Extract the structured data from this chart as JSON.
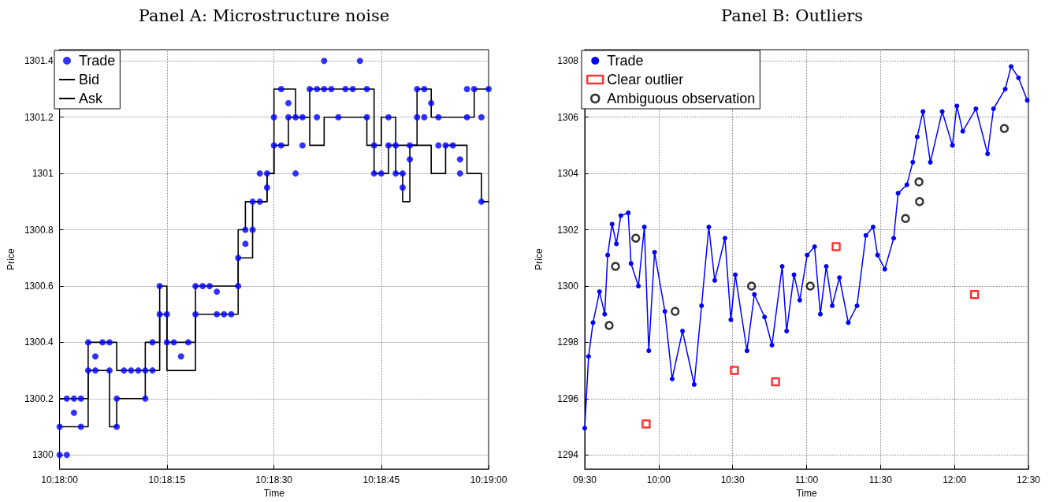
{
  "chart_data": [
    {
      "type": "scatter",
      "title": "Panel A: Microstructure noise",
      "xlabel": "Time",
      "ylabel": "Price",
      "xlim": [
        10.3,
        10.31667
      ],
      "xticks": [
        {
          "value": 10.3,
          "label": "10:18:00"
        },
        {
          "value": 10.30417,
          "label": "10:18:15"
        },
        {
          "value": 10.30833,
          "label": "10:18:30"
        },
        {
          "value": 10.3125,
          "label": "10:18:45"
        },
        {
          "value": 10.31667,
          "label": "10:19:00"
        }
      ],
      "ylim": [
        1299.95,
        1301.44
      ],
      "yticks": [
        1300,
        1300.2,
        1300.4,
        1300.6,
        1300.8,
        1301,
        1301.2,
        1301.4
      ],
      "grid": true,
      "legend": "top left",
      "series": [
        {
          "name": "Trade",
          "marker": "circle",
          "color": "#0000ff",
          "x": [
            10.3,
            10.3,
            10.30028,
            10.30028,
            10.30056,
            10.30056,
            10.30083,
            10.30083,
            10.30111,
            10.30111,
            10.30139,
            10.30139,
            10.30167,
            10.30194,
            10.30194,
            10.30222,
            10.30222,
            10.3025,
            10.30278,
            10.30306,
            10.30333,
            10.30333,
            10.30361,
            10.30361,
            10.30389,
            10.30389,
            10.30417,
            10.30417,
            10.30444,
            10.30472,
            10.305,
            10.30528,
            10.30528,
            10.30556,
            10.30583,
            10.30611,
            10.30611,
            10.30639,
            10.30667,
            10.30694,
            10.30694,
            10.30722,
            10.30722,
            10.3075,
            10.3075,
            10.30778,
            10.30778,
            10.30806,
            10.30806,
            10.30833,
            10.30833,
            10.30861,
            10.30861,
            10.30889,
            10.30889,
            10.30917,
            10.30917,
            10.30944,
            10.30944,
            10.30972,
            10.31,
            10.31,
            10.31028,
            10.31028,
            10.31056,
            10.31083,
            10.31111,
            10.31139,
            10.31167,
            10.31194,
            10.31194,
            10.31222,
            10.31222,
            10.3125,
            10.31278,
            10.31278,
            10.31306,
            10.31306,
            10.31333,
            10.31333,
            10.31361,
            10.31361,
            10.31389,
            10.31389,
            10.31417,
            10.31417,
            10.31444,
            10.31472,
            10.31472,
            10.315,
            10.31528,
            10.31556,
            10.31556,
            10.31583,
            10.31583,
            10.31611,
            10.31639,
            10.31639,
            10.31667
          ],
          "values": [
            1300.0,
            1300.1,
            1300.2,
            1300.0,
            1300.15,
            1300.2,
            1300.2,
            1300.1,
            1300.4,
            1300.3,
            1300.35,
            1300.3,
            1300.4,
            1300.4,
            1300.3,
            1300.1,
            1300.2,
            1300.3,
            1300.3,
            1300.3,
            1300.2,
            1300.3,
            1300.4,
            1300.3,
            1300.5,
            1300.6,
            1300.5,
            1300.4,
            1300.4,
            1300.35,
            1300.4,
            1300.5,
            1300.6,
            1300.6,
            1300.6,
            1300.58,
            1300.5,
            1300.5,
            1300.5,
            1300.6,
            1300.7,
            1300.8,
            1300.75,
            1300.9,
            1300.8,
            1300.9,
            1301.0,
            1300.95,
            1301.0,
            1301.2,
            1301.1,
            1301.3,
            1301.1,
            1301.25,
            1301.2,
            1301.0,
            1301.2,
            1301.1,
            1301.2,
            1301.3,
            1301.3,
            1301.2,
            1301.4,
            1301.3,
            1301.3,
            1301.2,
            1301.3,
            1301.3,
            1301.4,
            1301.2,
            1301.3,
            1301.1,
            1301.0,
            1301.0,
            1301.2,
            1301.1,
            1301.1,
            1301.0,
            1300.95,
            1301.0,
            1301.05,
            1301.1,
            1301.2,
            1301.3,
            1301.3,
            1301.2,
            1301.25,
            1301.2,
            1301.1,
            1301.1,
            1301.1,
            1301.05,
            1301.0,
            1301.2,
            1301.3,
            1301.3,
            1301.2,
            1300.9,
            1301.3
          ]
        },
        {
          "name": "Bid",
          "type": "step",
          "color": "#000000",
          "x": [
            10.3,
            10.30111,
            10.30194,
            10.30222,
            10.30333,
            10.30389,
            10.30417,
            10.30528,
            10.30694,
            10.3075,
            10.30806,
            10.30833,
            10.30889,
            10.30972,
            10.31028,
            10.31194,
            10.3125,
            10.31306,
            10.31333,
            10.31361,
            10.31444,
            10.315,
            10.31583,
            10.31639,
            10.31667
          ],
          "values": [
            1300.1,
            1300.3,
            1300.1,
            1300.2,
            1300.3,
            1300.5,
            1300.3,
            1300.5,
            1300.7,
            1300.9,
            1301.0,
            1301.1,
            1301.2,
            1301.1,
            1301.2,
            1301.1,
            1301.2,
            1301.0,
            1300.9,
            1301.1,
            1301.0,
            1301.1,
            1301.0,
            1300.9,
            1300.9
          ]
        },
        {
          "name": "Ask",
          "type": "step",
          "color": "#000000",
          "x": [
            10.3,
            10.30111,
            10.30222,
            10.30333,
            10.30389,
            10.30417,
            10.30528,
            10.30694,
            10.30722,
            10.30806,
            10.30833,
            10.30917,
            10.30972,
            10.31222,
            10.31278,
            10.31389,
            10.31444,
            10.31611,
            10.31667
          ],
          "values": [
            1300.2,
            1300.4,
            1300.3,
            1300.4,
            1300.6,
            1300.4,
            1300.6,
            1300.8,
            1300.9,
            1301.0,
            1301.3,
            1301.2,
            1301.3,
            1301.0,
            1301.1,
            1301.3,
            1301.2,
            1301.3,
            1301.3
          ]
        }
      ]
    },
    {
      "type": "line",
      "title": "Panel B: Outliers",
      "xlabel": "Time",
      "ylabel": "Price",
      "xlim": [
        9.5,
        12.5
      ],
      "xticks": [
        {
          "value": 9.5,
          "label": "09:30"
        },
        {
          "value": 10,
          "label": "10:00"
        },
        {
          "value": 10.5,
          "label": "10:30"
        },
        {
          "value": 11,
          "label": "11:00"
        },
        {
          "value": 11.5,
          "label": "11:30"
        },
        {
          "value": 12,
          "label": "12:00"
        },
        {
          "value": 12.5,
          "label": "12:30"
        }
      ],
      "ylim": [
        1293.5,
        1308.4
      ],
      "yticks": [
        1294,
        1296,
        1298,
        1300,
        1302,
        1304,
        1306,
        1308
      ],
      "grid": true,
      "legend": "top left",
      "series": [
        {
          "name": "Trade",
          "marker": "circle",
          "color": "#0000ff",
          "x": [
            9.5,
            9.526,
            9.556,
            9.6,
            9.635,
            9.655,
            9.685,
            9.714,
            9.744,
            9.794,
            9.813,
            9.863,
            9.903,
            9.933,
            9.972,
            10.042,
            10.091,
            10.161,
            10.24,
            10.29,
            10.339,
            10.379,
            10.448,
            10.488,
            10.518,
            10.597,
            10.647,
            10.716,
            10.766,
            10.835,
            10.865,
            10.915,
            10.954,
            11.004,
            11.054,
            11.093,
            11.133,
            11.173,
            11.222,
            11.282,
            11.341,
            11.401,
            11.45,
            11.48,
            11.529,
            11.589,
            11.619,
            11.678,
            11.718,
            11.748,
            11.787,
            11.837,
            11.917,
            11.986,
            12.016,
            12.056,
            12.145,
            12.224,
            12.264,
            12.343,
            12.383,
            12.433,
            12.492
          ],
          "values": [
            1294.95,
            1297.5,
            1298.7,
            1299.8,
            1299.0,
            1301.1,
            1302.2,
            1301.5,
            1302.5,
            1302.6,
            1300.8,
            1300.0,
            1302.1,
            1297.7,
            1301.2,
            1299.1,
            1296.7,
            1298.4,
            1296.5,
            1299.3,
            1302.1,
            1300.2,
            1301.7,
            1298.8,
            1300.4,
            1297.7,
            1299.7,
            1298.9,
            1297.9,
            1300.7,
            1298.4,
            1300.4,
            1299.5,
            1301.1,
            1301.4,
            1299.0,
            1300.7,
            1299.3,
            1300.3,
            1298.7,
            1299.3,
            1301.8,
            1302.1,
            1301.1,
            1300.6,
            1301.7,
            1303.3,
            1303.6,
            1304.4,
            1305.3,
            1306.2,
            1304.4,
            1306.2,
            1305.0,
            1306.4,
            1305.5,
            1306.3,
            1304.7,
            1306.3,
            1307.0,
            1307.8,
            1307.4,
            1306.6
          ]
        },
        {
          "name": "Clear outlier",
          "type": "scatter",
          "marker": "square",
          "color": "#ff0000",
          "x": [
            9.915,
            10.512,
            10.79,
            11.2,
            12.136
          ],
          "values": [
            1295.1,
            1297.0,
            1296.6,
            1301.4,
            1299.7
          ]
        },
        {
          "name": "Ambiguous observation",
          "type": "scatter",
          "marker": "circle",
          "color": "#000000",
          "x": [
            9.665,
            9.708,
            9.845,
            10.111,
            10.628,
            11.025,
            11.669,
            11.764,
            11.76,
            12.337
          ],
          "values": [
            1298.6,
            1300.7,
            1301.7,
            1299.1,
            1300.0,
            1300.0,
            1302.4,
            1303.0,
            1303.7,
            1305.6
          ]
        }
      ]
    }
  ]
}
